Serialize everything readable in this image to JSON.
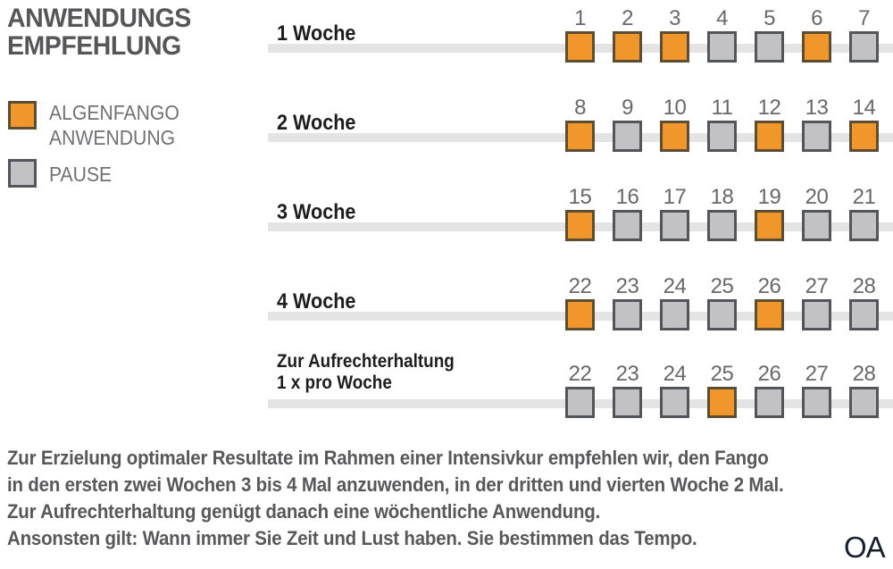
{
  "title": {
    "line1": "ANWENDUNGS",
    "line2": "EMPFEHLUNG"
  },
  "legend": {
    "items": [
      {
        "type": "anwendung",
        "label_line1": "ALGENFANGO",
        "label_line2": "ANWENDUNG"
      },
      {
        "type": "pause",
        "label_line1": "PAUSE",
        "label_line2": ""
      }
    ]
  },
  "colors": {
    "anwendung": "#F0962B",
    "anwendung_border": "#5C4E33",
    "pause": "#C2C2C4",
    "pause_border": "#54555A",
    "track": "#E4E4E5",
    "title": "#565659",
    "label": "#1D1D1F",
    "number": "#67686B",
    "legend": "#707174",
    "footer": "#58585B",
    "watermark": "#16202C"
  },
  "rows": [
    {
      "label": "1 Woche",
      "label2": "",
      "days": [
        {
          "n": "1",
          "type": "anwendung"
        },
        {
          "n": "2",
          "type": "anwendung"
        },
        {
          "n": "3",
          "type": "anwendung"
        },
        {
          "n": "4",
          "type": "pause"
        },
        {
          "n": "5",
          "type": "pause"
        },
        {
          "n": "6",
          "type": "anwendung"
        },
        {
          "n": "7",
          "type": "pause"
        }
      ]
    },
    {
      "label": "2 Woche",
      "label2": "",
      "days": [
        {
          "n": "8",
          "type": "anwendung"
        },
        {
          "n": "9",
          "type": "pause"
        },
        {
          "n": "10",
          "type": "anwendung"
        },
        {
          "n": "11",
          "type": "pause"
        },
        {
          "n": "12",
          "type": "anwendung"
        },
        {
          "n": "13",
          "type": "pause"
        },
        {
          "n": "14",
          "type": "anwendung"
        }
      ]
    },
    {
      "label": "3 Woche",
      "label2": "",
      "days": [
        {
          "n": "15",
          "type": "anwendung"
        },
        {
          "n": "16",
          "type": "pause"
        },
        {
          "n": "17",
          "type": "pause"
        },
        {
          "n": "18",
          "type": "pause"
        },
        {
          "n": "19",
          "type": "anwendung"
        },
        {
          "n": "20",
          "type": "pause"
        },
        {
          "n": "21",
          "type": "pause"
        }
      ]
    },
    {
      "label": "4 Woche",
      "label2": "",
      "days": [
        {
          "n": "22",
          "type": "anwendung"
        },
        {
          "n": "23",
          "type": "pause"
        },
        {
          "n": "24",
          "type": "pause"
        },
        {
          "n": "25",
          "type": "pause"
        },
        {
          "n": "26",
          "type": "anwendung"
        },
        {
          "n": "27",
          "type": "pause"
        },
        {
          "n": "28",
          "type": "pause"
        }
      ]
    },
    {
      "label": "Zur Aufrechterhaltung",
      "label2": "1 x pro Woche",
      "days": [
        {
          "n": "22",
          "type": "pause"
        },
        {
          "n": "23",
          "type": "pause"
        },
        {
          "n": "24",
          "type": "pause"
        },
        {
          "n": "25",
          "type": "anwendung"
        },
        {
          "n": "26",
          "type": "pause"
        },
        {
          "n": "27",
          "type": "pause"
        },
        {
          "n": "28",
          "type": "pause"
        }
      ]
    }
  ],
  "footer": {
    "lines": [
      "Zur Erzielung optimaler Resultate im Rahmen einer Intensivkur empfehlen wir, den Fango",
      "in den ersten zwei Wochen 3 bis 4 Mal anzuwenden, in der dritten und vierten Woche 2 Mal.",
      "Zur Aufrechterhaltung genügt danach eine wöchentliche Anwendung.",
      "Ansonsten gilt: Wann immer Sie Zeit und Lust haben. Sie bestimmen das Tempo."
    ]
  },
  "watermark": "OA"
}
